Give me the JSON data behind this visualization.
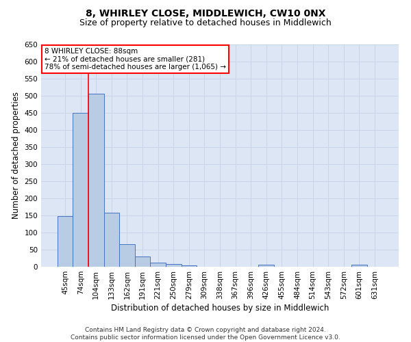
{
  "title": "8, WHIRLEY CLOSE, MIDDLEWICH, CW10 0NX",
  "subtitle": "Size of property relative to detached houses in Middlewich",
  "xlabel": "Distribution of detached houses by size in Middlewich",
  "ylabel": "Number of detached properties",
  "categories": [
    "45sqm",
    "74sqm",
    "104sqm",
    "133sqm",
    "162sqm",
    "191sqm",
    "221sqm",
    "250sqm",
    "279sqm",
    "309sqm",
    "338sqm",
    "367sqm",
    "396sqm",
    "426sqm",
    "455sqm",
    "484sqm",
    "514sqm",
    "543sqm",
    "572sqm",
    "601sqm",
    "631sqm"
  ],
  "bar_heights": [
    148,
    450,
    507,
    158,
    67,
    30,
    13,
    8,
    5,
    0,
    0,
    0,
    0,
    6,
    0,
    0,
    0,
    0,
    0,
    6,
    0
  ],
  "bar_color": "#b8cce4",
  "bar_edge_color": "#4472c4",
  "annotation_box_text": "8 WHIRLEY CLOSE: 88sqm\n← 21% of detached houses are smaller (281)\n78% of semi-detached houses are larger (1,065) →",
  "annotation_box_color": "white",
  "annotation_box_edge_color": "red",
  "vline_color": "red",
  "vline_x": 1.5,
  "ylim": [
    0,
    650
  ],
  "yticks": [
    0,
    50,
    100,
    150,
    200,
    250,
    300,
    350,
    400,
    450,
    500,
    550,
    600,
    650
  ],
  "grid_color": "#c8d4e8",
  "background_color": "#dce6f5",
  "footer_text": "Contains HM Land Registry data © Crown copyright and database right 2024.\nContains public sector information licensed under the Open Government Licence v3.0.",
  "title_fontsize": 10,
  "subtitle_fontsize": 9,
  "xlabel_fontsize": 8.5,
  "ylabel_fontsize": 8.5,
  "tick_fontsize": 7.5,
  "annotation_fontsize": 7.5,
  "footer_fontsize": 6.5
}
